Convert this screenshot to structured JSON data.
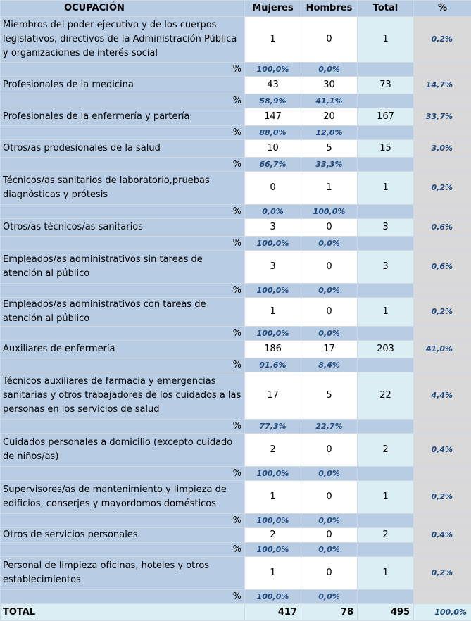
{
  "headers": {
    "occupation": "OCUPACIÓN",
    "women": "Mujeres",
    "men": "Hombres",
    "total": "Total",
    "percent": "%"
  },
  "pct_label": "%",
  "rows": [
    {
      "label": "Miembros del poder ejecutivo y de los cuerpos legislativos, directivos de la Administración Pública y organizaciones de interés social",
      "women": "1",
      "men": "0",
      "total": "1",
      "pct": "0,2%",
      "women_pct": "100,0%",
      "men_pct": "0,0%"
    },
    {
      "label": "Profesionales de la medicina",
      "women": "43",
      "men": "30",
      "total": "73",
      "pct": "14,7%",
      "women_pct": "58,9%",
      "men_pct": "41,1%"
    },
    {
      "label": "Profesionales de la enfermería y partería",
      "women": "147",
      "men": "20",
      "total": "167",
      "pct": "33,7%",
      "women_pct": "88,0%",
      "men_pct": "12,0%"
    },
    {
      "label": "Otros/as prodesionales de la salud",
      "women": "10",
      "men": "5",
      "total": "15",
      "pct": "3,0%",
      "women_pct": "66,7%",
      "men_pct": "33,3%"
    },
    {
      "label": "Técnicos/as sanitarios de laboratorio,pruebas diagnósticas y prótesis",
      "women": "0",
      "men": "1",
      "total": "1",
      "pct": "0,2%",
      "women_pct": "0,0%",
      "men_pct": "100,0%"
    },
    {
      "label": "Otros/as técnicos/as sanitarios",
      "women": "3",
      "men": "0",
      "total": "3",
      "pct": "0,6%",
      "women_pct": "100,0%",
      "men_pct": "0,0%"
    },
    {
      "label": "Empleados/as administrativos sin tareas de atención al público",
      "women": "3",
      "men": "0",
      "total": "3",
      "pct": "0,6%",
      "women_pct": "100,0%",
      "men_pct": "0,0%"
    },
    {
      "label": "Empleados/as administrativos con tareas de atención al público",
      "women": "1",
      "men": "0",
      "total": "1",
      "pct": "0,2%",
      "women_pct": "100,0%",
      "men_pct": "0,0%"
    },
    {
      "label": "Auxiliares de enfermería",
      "women": "186",
      "men": "17",
      "total": "203",
      "pct": "41,0%",
      "women_pct": "91,6%",
      "men_pct": "8,4%"
    },
    {
      "label": "Técnicos auxiliares de farmacia y emergencias sanitarias y otros trabajadores de los cuidados a las personas en los servicios de salud",
      "women": "17",
      "men": "5",
      "total": "22",
      "pct": "4,4%",
      "women_pct": "77,3%",
      "men_pct": "22,7%"
    },
    {
      "label": "Cuidados personales a domicilio  (excepto cuidado de niños/as)",
      "women": "2",
      "men": "0",
      "total": "2",
      "pct": "0,4%",
      "women_pct": "100,0%",
      "men_pct": "0,0%"
    },
    {
      "label": "Supervisores/as de mantenimiento y limpieza de edificios, conserjes y mayordomos domésticos",
      "women": "1",
      "men": "0",
      "total": "1",
      "pct": "0,2%",
      "women_pct": "100,0%",
      "men_pct": "0,0%"
    },
    {
      "label": "Otros de servicios personales",
      "women": "2",
      "men": "0",
      "total": "2",
      "pct": "0,4%",
      "women_pct": "100,0%",
      "men_pct": "0,0%"
    },
    {
      "label": "Personal de limpieza oficinas, hoteles y otros establecimientos",
      "women": "1",
      "men": "0",
      "total": "1",
      "pct": "0,2%",
      "women_pct": "100,0%",
      "men_pct": "0,0%"
    }
  ],
  "total_row": {
    "label": "TOTAL",
    "women": "417",
    "men": "78",
    "total": "495",
    "pct": "100,0%"
  }
}
